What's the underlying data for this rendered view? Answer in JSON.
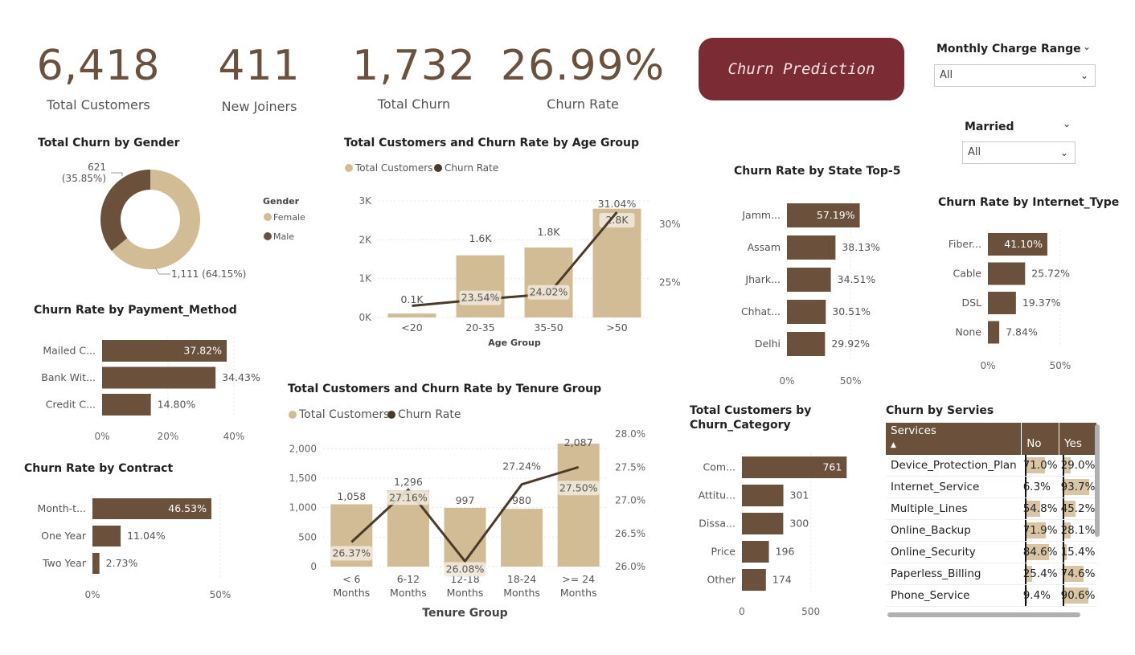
{
  "kpis": [
    {
      "value": "6,418",
      "label": "Total Customers"
    },
    {
      "value": "411",
      "label": "New Joiners"
    },
    {
      "value": "1,732",
      "label": "Total Churn"
    },
    {
      "value": "26.99%",
      "label": "Churn Rate"
    }
  ],
  "prediction_button": "Churn Prediction",
  "slicers": {
    "monthly": {
      "title": "Monthly Charge Range",
      "value": "All"
    },
    "married": {
      "title": "Married",
      "value": "All"
    }
  },
  "titles": {
    "gender": "Total Churn by Gender",
    "age": "Total Customers and Churn Rate by Age Group",
    "state": "Churn Rate by State Top-5",
    "internet": "Churn Rate by Internet_Type",
    "payment": "Churn Rate by Payment_Method",
    "contract": "Churn Rate by Contract",
    "tenure": "Total Customers and Churn Rate by Tenure Group",
    "category_l1": "Total Customers by",
    "category_l2": "Churn_Category",
    "services": "Churn by Servies"
  },
  "colors": {
    "primary": "#6b513c",
    "secondary": "#d2bc95",
    "line": "#4a3a2c",
    "button": "#7a2b33"
  },
  "chart_data": [
    {
      "type": "pie",
      "name": "gender",
      "legend_title": "Gender",
      "categories": [
        "Female",
        "Male"
      ],
      "values": [
        1111,
        621
      ],
      "labels": [
        "1,111 (64.15%)",
        "621 (35.85%)"
      ],
      "legend_placement": "right"
    },
    {
      "type": "bar",
      "name": "age",
      "categories": [
        "<20",
        "20-35",
        "35-50",
        ">50"
      ],
      "xlabel": "Age Group",
      "series": [
        {
          "name": "Total Customers",
          "values": [
            0.1,
            1.6,
            1.8,
            2.8
          ],
          "labels": [
            "0.1K",
            "1.6K",
            "1.8K",
            "2.8K"
          ]
        },
        {
          "name": "Churn Rate",
          "values": [
            23.0,
            23.54,
            24.02,
            31.04
          ],
          "labels": [
            "",
            "23.54%",
            "24.02%",
            "31.04%"
          ]
        }
      ],
      "y_ticks": [
        "0K",
        "1K",
        "2K",
        "3K"
      ],
      "y2_ticks": [
        "25%",
        "30%"
      ],
      "ylim": [
        0,
        3
      ],
      "y2lim": [
        22,
        32
      ]
    },
    {
      "type": "bar",
      "name": "state",
      "categories": [
        "Jamm...",
        "Assam",
        "Jhark...",
        "Chhat...",
        "Delhi"
      ],
      "values": [
        57.19,
        38.13,
        34.51,
        30.51,
        29.92
      ],
      "labels": [
        "57.19%",
        "38.13%",
        "34.51%",
        "30.51%",
        "29.92%"
      ],
      "x_ticks": [
        "0%",
        "50%"
      ],
      "xlim": [
        0,
        60
      ]
    },
    {
      "type": "bar",
      "name": "internet",
      "categories": [
        "Fiber...",
        "Cable",
        "DSL",
        "None"
      ],
      "values": [
        41.1,
        25.72,
        19.37,
        7.84
      ],
      "labels": [
        "41.10%",
        "25.72%",
        "19.37%",
        "7.84%"
      ],
      "x_ticks": [
        "0%",
        "50%"
      ],
      "xlim": [
        0,
        55
      ]
    },
    {
      "type": "bar",
      "name": "payment",
      "categories": [
        "Mailed C...",
        "Bank Wit...",
        "Credit C..."
      ],
      "values": [
        37.82,
        34.43,
        14.8
      ],
      "labels": [
        "37.82%",
        "34.43%",
        "14.80%"
      ],
      "x_ticks": [
        "0%",
        "20%",
        "40%"
      ],
      "xlim": [
        0,
        40
      ]
    },
    {
      "type": "bar",
      "name": "contract",
      "categories": [
        "Month-t...",
        "One Year",
        "Two Year"
      ],
      "values": [
        46.53,
        11.04,
        2.73
      ],
      "labels": [
        "46.53%",
        "11.04%",
        "2.73%"
      ],
      "x_ticks": [
        "0%",
        "50%"
      ],
      "xlim": [
        0,
        50
      ]
    },
    {
      "type": "bar",
      "name": "tenure",
      "categories": [
        [
          "< 6",
          "Months"
        ],
        [
          "6-12",
          "Months"
        ],
        [
          "12-18",
          "Months"
        ],
        [
          "18-24",
          "Months"
        ],
        [
          ">= 24",
          "Months"
        ]
      ],
      "xlabel": "Tenure Group",
      "series": [
        {
          "name": "Total Customers",
          "values": [
            1058,
            1296,
            997,
            980,
            2087
          ],
          "labels": [
            "1,058",
            "1,296",
            "997",
            "980",
            "2,087"
          ]
        },
        {
          "name": "Churn Rate",
          "values": [
            26.37,
            27.16,
            26.08,
            27.24,
            27.5
          ],
          "labels": [
            "26.37%",
            "27.16%",
            "26.08%",
            "27.24%",
            "27.50%"
          ]
        }
      ],
      "y_ticks": [
        "0",
        "500",
        "1,000",
        "1,500",
        "2,000"
      ],
      "y2_ticks": [
        "26.0%",
        "26.5%",
        "27.0%",
        "27.5%",
        "28.0%"
      ],
      "ylim": [
        0,
        2250
      ],
      "y2lim": [
        26.0,
        28.0
      ]
    },
    {
      "type": "bar",
      "name": "category",
      "categories": [
        "Com...",
        "Attitu...",
        "Dissa...",
        "Price",
        "Other"
      ],
      "values": [
        761,
        301,
        300,
        196,
        174
      ],
      "labels": [
        "761",
        "301",
        "300",
        "196",
        "174"
      ],
      "x_ticks": [
        "0",
        "500"
      ],
      "xlim": [
        0,
        800
      ]
    }
  ],
  "services": {
    "headers": [
      "Services",
      "No",
      "Yes"
    ],
    "rows": [
      {
        "name": "Device_Protection_Plan",
        "no": 71.0,
        "yes": 29.0,
        "no_label": "71.0%",
        "yes_label": "29.0%"
      },
      {
        "name": "Internet_Service",
        "no": 6.3,
        "yes": 93.7,
        "no_label": "6.3%",
        "yes_label": "93.7%"
      },
      {
        "name": "Multiple_Lines",
        "no": 54.8,
        "yes": 45.2,
        "no_label": "54.8%",
        "yes_label": "45.2%"
      },
      {
        "name": "Online_Backup",
        "no": 71.9,
        "yes": 28.1,
        "no_label": "71.9%",
        "yes_label": "28.1%"
      },
      {
        "name": "Online_Security",
        "no": 84.6,
        "yes": 15.4,
        "no_label": "84.6%",
        "yes_label": "15.4%"
      },
      {
        "name": "Paperless_Billing",
        "no": 25.4,
        "yes": 74.6,
        "no_label": "25.4%",
        "yes_label": "74.6%"
      },
      {
        "name": "Phone_Service",
        "no": 9.4,
        "yes": 90.6,
        "no_label": "9.4%",
        "yes_label": "90.6%"
      }
    ]
  }
}
